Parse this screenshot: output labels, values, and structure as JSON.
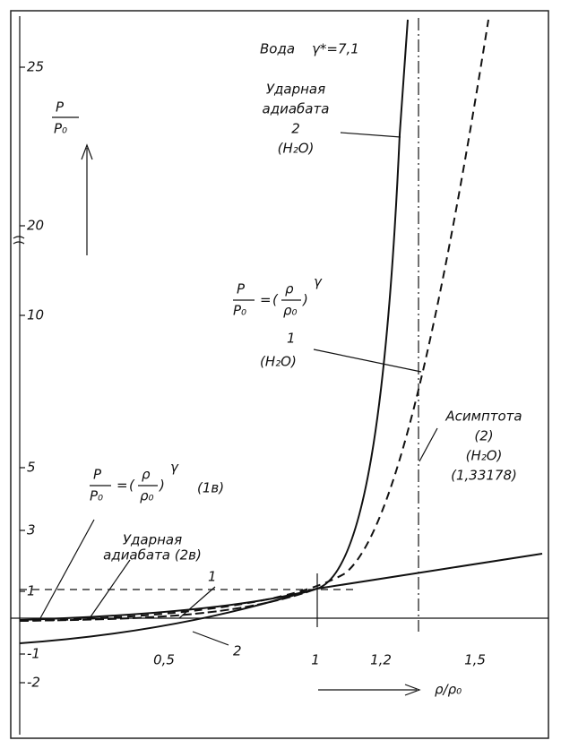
{
  "header": {
    "title_word": "Вода",
    "title_param": "γ*=7,1"
  },
  "axes": {
    "y_label": {
      "num": "P",
      "den": "P₀"
    },
    "x_label": "ρ/ρ₀",
    "y_ticks": [
      "25",
      "20",
      "10",
      "5",
      "3",
      "1",
      "-1",
      "-2"
    ],
    "x_ticks": [
      "0,5",
      "1",
      "1,2",
      "1,5"
    ]
  },
  "annotations": {
    "shock_h2o": {
      "lines": [
        "Ударная",
        "адиабата",
        "2",
        "(H₂O)"
      ]
    },
    "isentrope_h2o": {
      "num": "P",
      "den": "P₀",
      "eq": "=",
      "rnum": "ρ",
      "rden": "ρ₀",
      "exp": "γ",
      "index": "1",
      "sub": "(H₂O)"
    },
    "asymptote": {
      "lines": [
        "Асимптота",
        "(2)",
        "(H₂O)",
        "(1,33178)"
      ]
    },
    "isentrope_1b": {
      "num": "P",
      "den": "P₀",
      "eq": "=",
      "rnum": "ρ",
      "rden": "ρ₀",
      "exp": "γ",
      "tag": "(1в)"
    },
    "shock_2b": {
      "lines": [
        "Ударная",
        "адиабата (2в)"
      ]
    },
    "curve_1": "1",
    "curve_2": "2"
  }
}
